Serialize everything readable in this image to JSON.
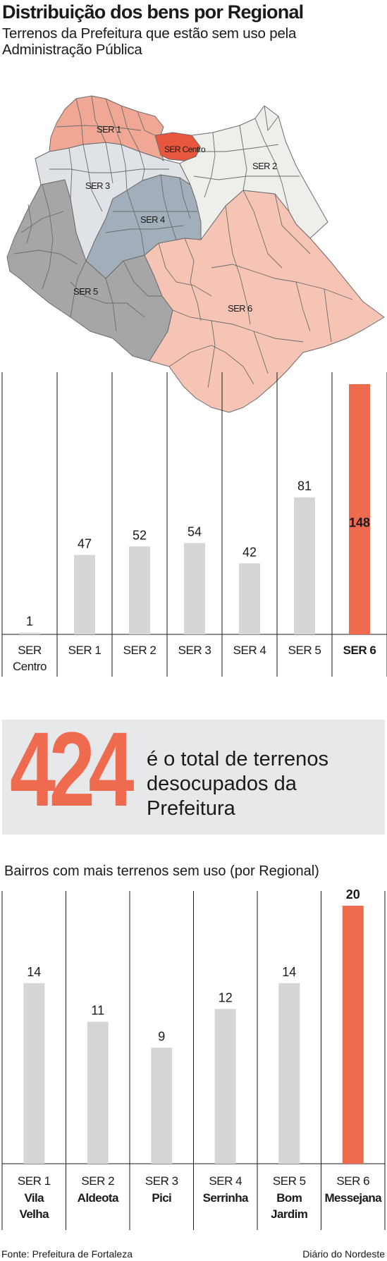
{
  "title": "Distribuição dos bens por Regional",
  "subtitle": "Terrenos da Prefeitura que estão sem uso pela Administração Pública",
  "map": {
    "labels": [
      "SER 1",
      "SER Centro",
      "SER 2",
      "SER 3",
      "SER 4",
      "SER 5",
      "SER 6"
    ],
    "colors": {
      "ser1": "#f0a894",
      "centro": "#e8573d",
      "ser2": "#eeeeea",
      "ser3": "#dfe2e6",
      "ser4": "#a3aebb",
      "ser5": "#a6a6a6",
      "ser6": "#f6c4b4"
    }
  },
  "chart_data": [
    {
      "type": "bar",
      "categories": [
        "SER Centro",
        "SER 1",
        "SER 2",
        "SER 3",
        "SER 4",
        "SER 5",
        "SER 6"
      ],
      "values": [
        1,
        47,
        52,
        54,
        42,
        81,
        148
      ],
      "highlight_index": 6,
      "colors": {
        "default": "#d5d6d8",
        "highlight": "#ef6b50"
      }
    },
    {
      "type": "bar",
      "title": "Bairros com mais terrenos sem uso (por Regional)",
      "categories": [
        "SER 1",
        "SER 2",
        "SER 3",
        "SER 4",
        "SER 5",
        "SER 6"
      ],
      "subcategories": [
        "Vila Velha",
        "Aldeota",
        "Pici",
        "Serrinha",
        "Bom Jardim",
        "Messejana"
      ],
      "values": [
        14,
        11,
        9,
        12,
        14,
        20
      ],
      "highlight_index": 5,
      "colors": {
        "default": "#d5d6d8",
        "highlight": "#ef6b50"
      }
    }
  ],
  "total": {
    "value": "424",
    "text": "é o total de terrenos desocupados da Prefeitura"
  },
  "source": "Fonte: Prefeitura de Fortaleza",
  "brand": "Diário do Nordeste"
}
